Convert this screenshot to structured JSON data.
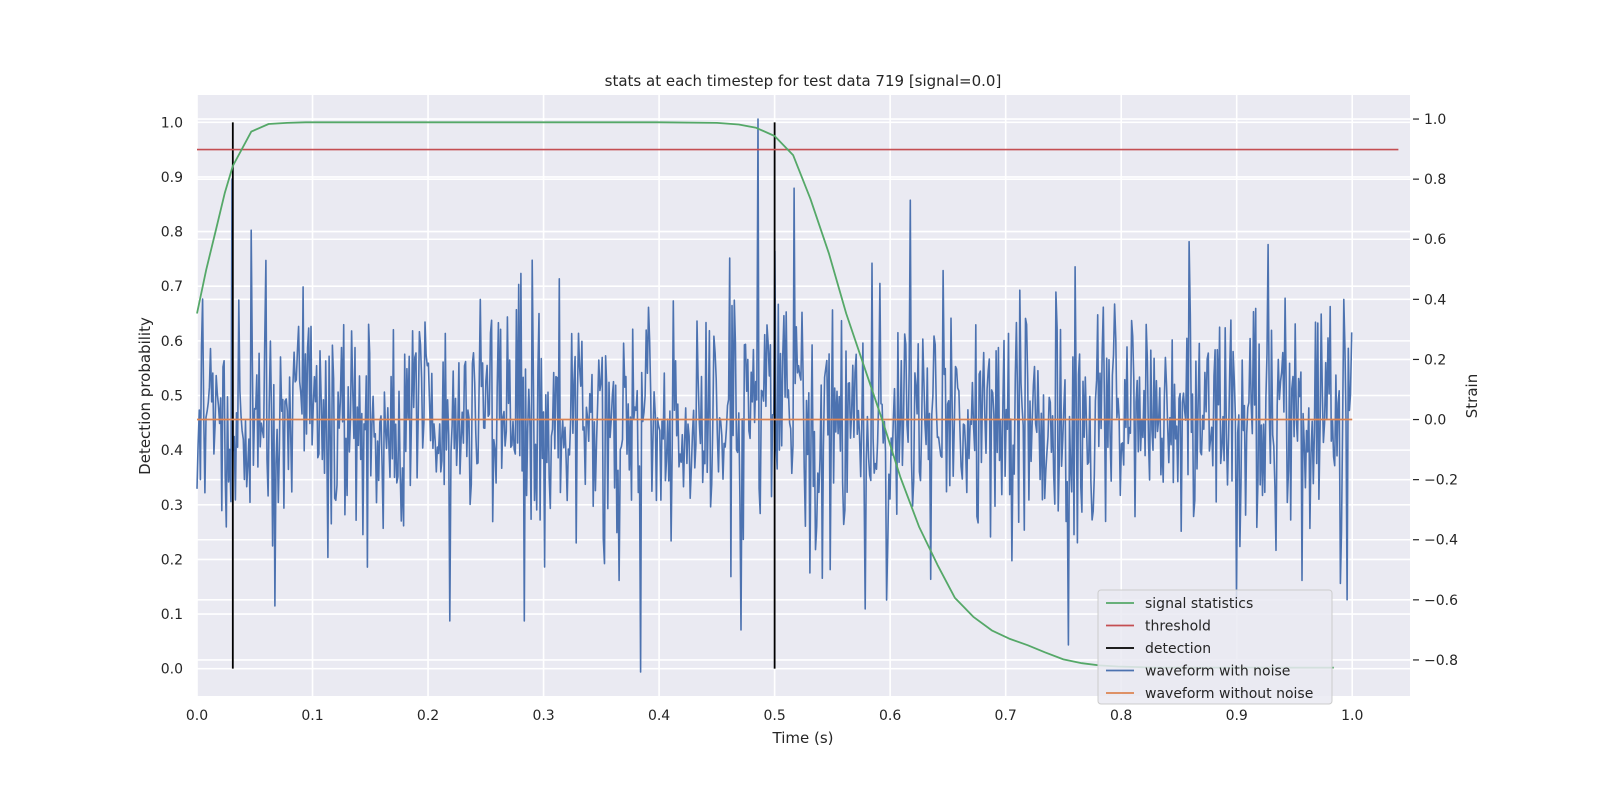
{
  "chart_data": {
    "type": "line",
    "title": "stats at each timestep for test data 719 [signal=0.0]",
    "xlabel": "Time (s)",
    "ylabel": "Detection probability",
    "y2label": "Strain",
    "xlim": [
      0.0,
      1.05
    ],
    "ylim": [
      -0.05,
      1.05
    ],
    "y2lim": [
      -0.92,
      1.08
    ],
    "xticks": [
      "0.0",
      "0.1",
      "0.2",
      "0.3",
      "0.4",
      "0.5",
      "0.6",
      "0.7",
      "0.8",
      "0.9",
      "1.0"
    ],
    "yticks": [
      "0.0",
      "0.1",
      "0.2",
      "0.3",
      "0.4",
      "0.5",
      "0.6",
      "0.7",
      "0.8",
      "0.9",
      "1.0"
    ],
    "y2ticks": [
      "−0.8",
      "−0.6",
      "−0.4",
      "−0.2",
      "0.0",
      "0.2",
      "0.4",
      "0.6",
      "0.8",
      "1.0"
    ],
    "grid": true,
    "legend_position": "lower-right",
    "series": [
      {
        "name": "signal statistics",
        "color": "#55a868",
        "axis": "left",
        "x": [
          0.0,
          0.008,
          0.016,
          0.024,
          0.031,
          0.047,
          0.062,
          0.078,
          0.094,
          0.109,
          0.125,
          0.2,
          0.3,
          0.4,
          0.45,
          0.469,
          0.484,
          0.5,
          0.516,
          0.531,
          0.547,
          0.562,
          0.578,
          0.594,
          0.609,
          0.625,
          0.641,
          0.656,
          0.672,
          0.688,
          0.703,
          0.719,
          0.734,
          0.75,
          0.766,
          0.781,
          0.797,
          0.812,
          0.828,
          0.844,
          0.859,
          0.875,
          0.891,
          0.906,
          0.922,
          0.938,
          0.953,
          0.969,
          0.984
        ],
        "values": [
          0.65,
          0.73,
          0.8,
          0.87,
          0.92,
          0.983,
          0.997,
          0.999,
          1.0,
          1.0,
          1.0,
          1.0,
          1.0,
          1.0,
          0.999,
          0.996,
          0.99,
          0.975,
          0.94,
          0.86,
          0.76,
          0.65,
          0.55,
          0.45,
          0.35,
          0.26,
          0.19,
          0.13,
          0.095,
          0.07,
          0.055,
          0.043,
          0.03,
          0.017,
          0.01,
          0.006,
          0.004,
          0.003,
          0.002,
          0.002,
          0.002,
          0.002,
          0.002,
          0.002,
          0.002,
          0.002,
          0.002,
          0.002,
          0.002
        ]
      },
      {
        "name": "threshold",
        "color": "#c44e52",
        "axis": "left",
        "x": [
          0.0,
          1.04
        ],
        "values": [
          0.95,
          0.95
        ]
      },
      {
        "name": "detection",
        "color": "#000000",
        "axis": "left",
        "segments": [
          {
            "x": 0.031,
            "from": 0.0,
            "to": 1.0
          },
          {
            "x": 0.5,
            "from": 0.0,
            "to": 1.0
          }
        ]
      },
      {
        "name": "waveform with noise",
        "color": "#4c72b0",
        "axis": "right",
        "generated": {
          "n": 1024,
          "start": 0.0,
          "end": 0.9995,
          "amplitude": 0.2,
          "seed": 719
        },
        "peaks": [
          {
            "x": 0.0303,
            "value": 0.8
          },
          {
            "x": 0.0465,
            "value": 0.63
          },
          {
            "x": 0.219,
            "value": -0.67
          },
          {
            "x": 0.283,
            "value": -0.67
          },
          {
            "x": 0.384,
            "value": -0.84
          },
          {
            "x": 0.486,
            "value": 1.0
          },
          {
            "x": 0.4705,
            "value": -0.7
          },
          {
            "x": 0.517,
            "value": 0.77
          },
          {
            "x": 0.578,
            "value": -0.63
          },
          {
            "x": 0.617,
            "value": 0.73
          },
          {
            "x": 0.754,
            "value": -0.75
          },
          {
            "x": 0.9,
            "value": -0.6
          }
        ]
      },
      {
        "name": "waveform without noise",
        "color": "#dd8452",
        "axis": "right",
        "x": [
          0.0,
          1.0
        ],
        "values": [
          0.0,
          0.0
        ]
      }
    ]
  }
}
